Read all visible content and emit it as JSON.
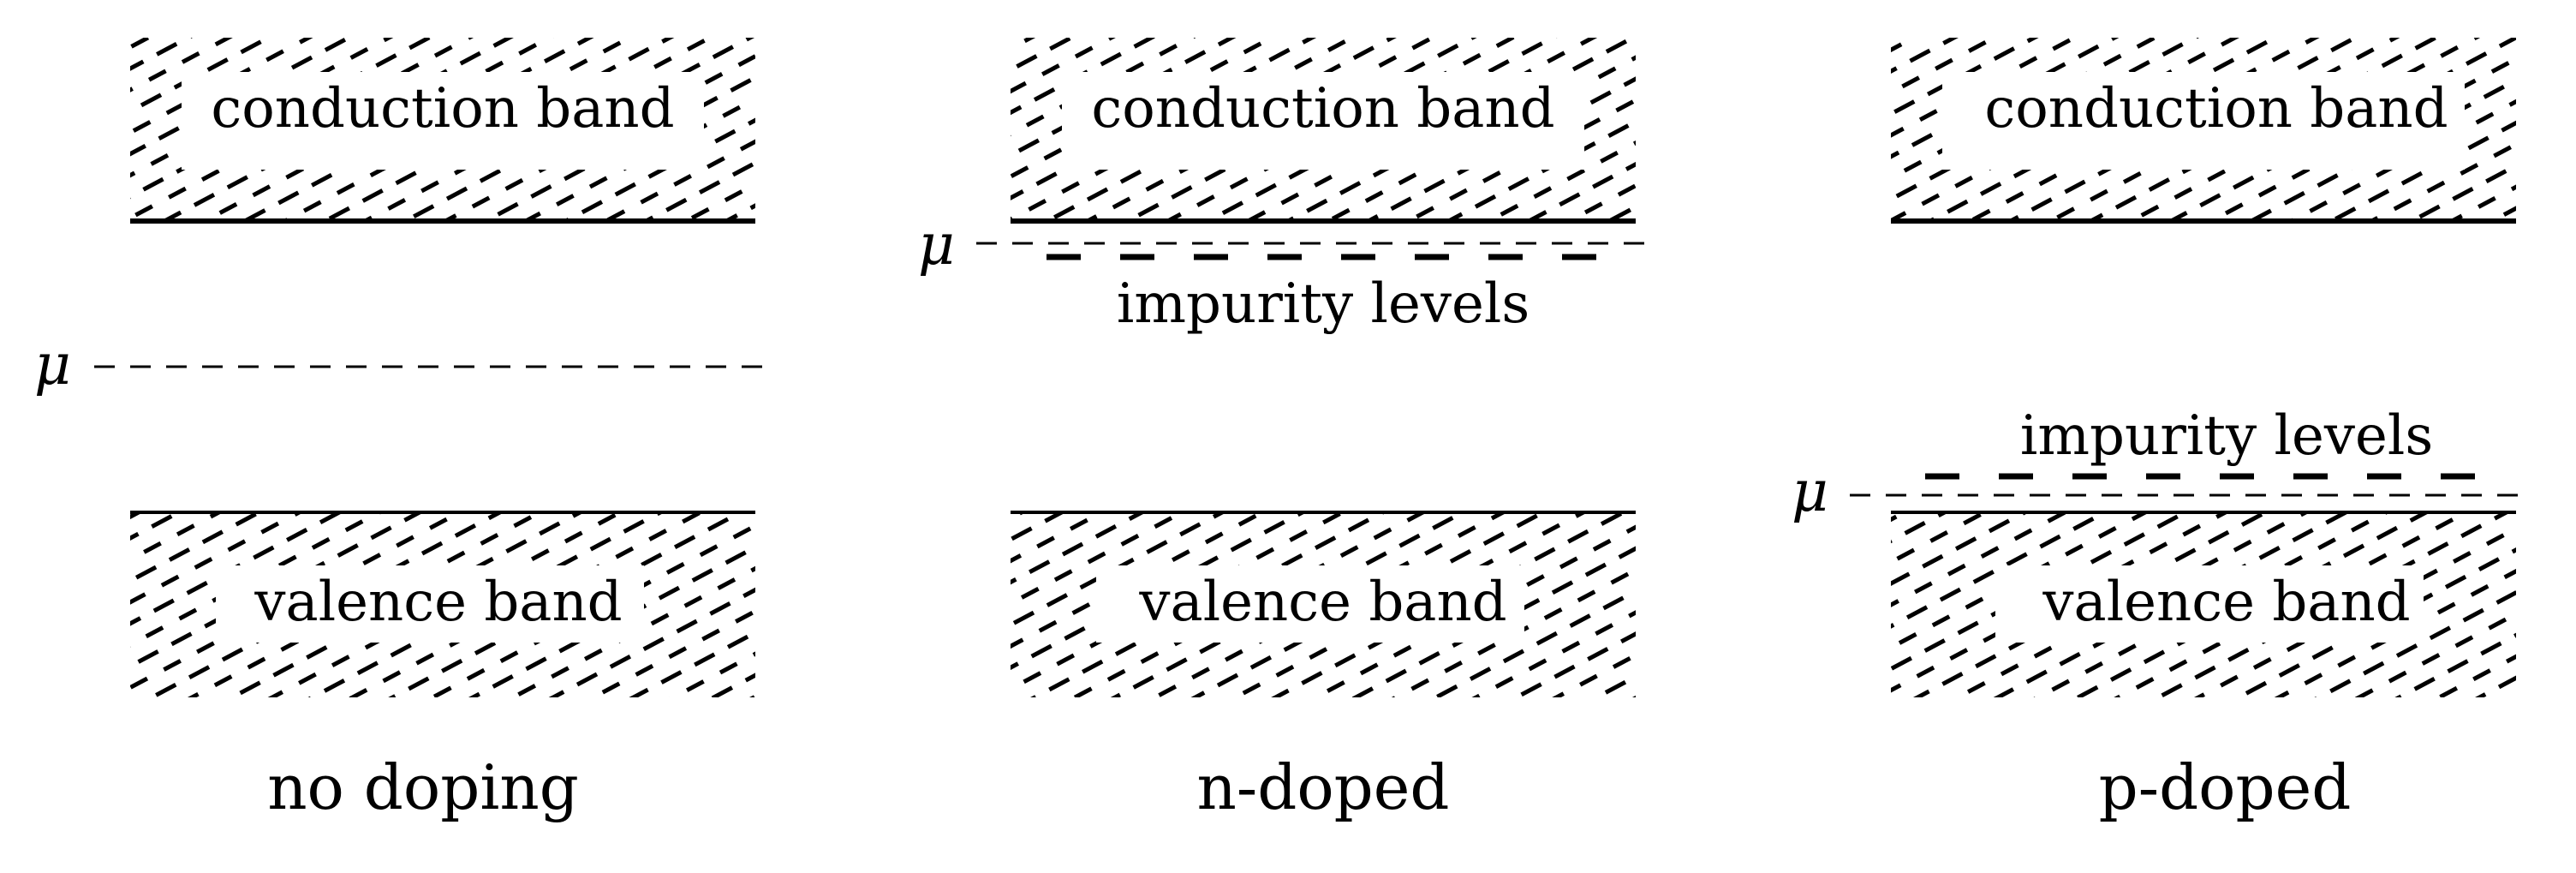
{
  "panels": [
    {
      "caption": "no doping",
      "conduction_label": "conduction band",
      "valence_label": "valence band",
      "mu_symbol": "μ",
      "impurity_label": ""
    },
    {
      "caption": "n-doped",
      "conduction_label": "conduction band",
      "valence_label": "valence band",
      "mu_symbol": "μ",
      "impurity_label": "impurity levels"
    },
    {
      "caption": "p-doped",
      "conduction_label": "conduction band",
      "valence_label": "valence band",
      "mu_symbol": "μ",
      "impurity_label": "impurity levels"
    }
  ]
}
